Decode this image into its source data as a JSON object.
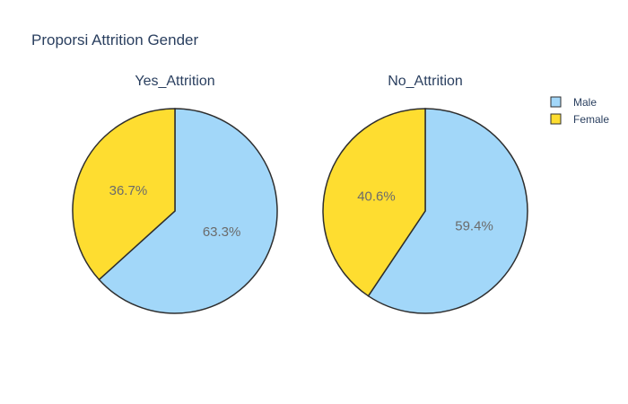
{
  "chart_data": {
    "type": "pie",
    "title": "Proporsi Attrition Gender",
    "colors": {
      "Male": "#a2d7f9",
      "Female": "#fedd30",
      "outline": "#2e2e2e"
    },
    "legend": {
      "placement": "top-right",
      "entries": [
        "Male",
        "Female"
      ]
    },
    "pies": [
      {
        "name": "Yes_Attrition",
        "slices": [
          {
            "label": "Male",
            "value": 63.3,
            "text": "63.3%"
          },
          {
            "label": "Female",
            "value": 36.7,
            "text": "36.7%"
          }
        ]
      },
      {
        "name": "No_Attrition",
        "slices": [
          {
            "label": "Male",
            "value": 59.4,
            "text": "59.4%"
          },
          {
            "label": "Female",
            "value": 40.6,
            "text": "40.6%"
          }
        ]
      }
    ]
  }
}
